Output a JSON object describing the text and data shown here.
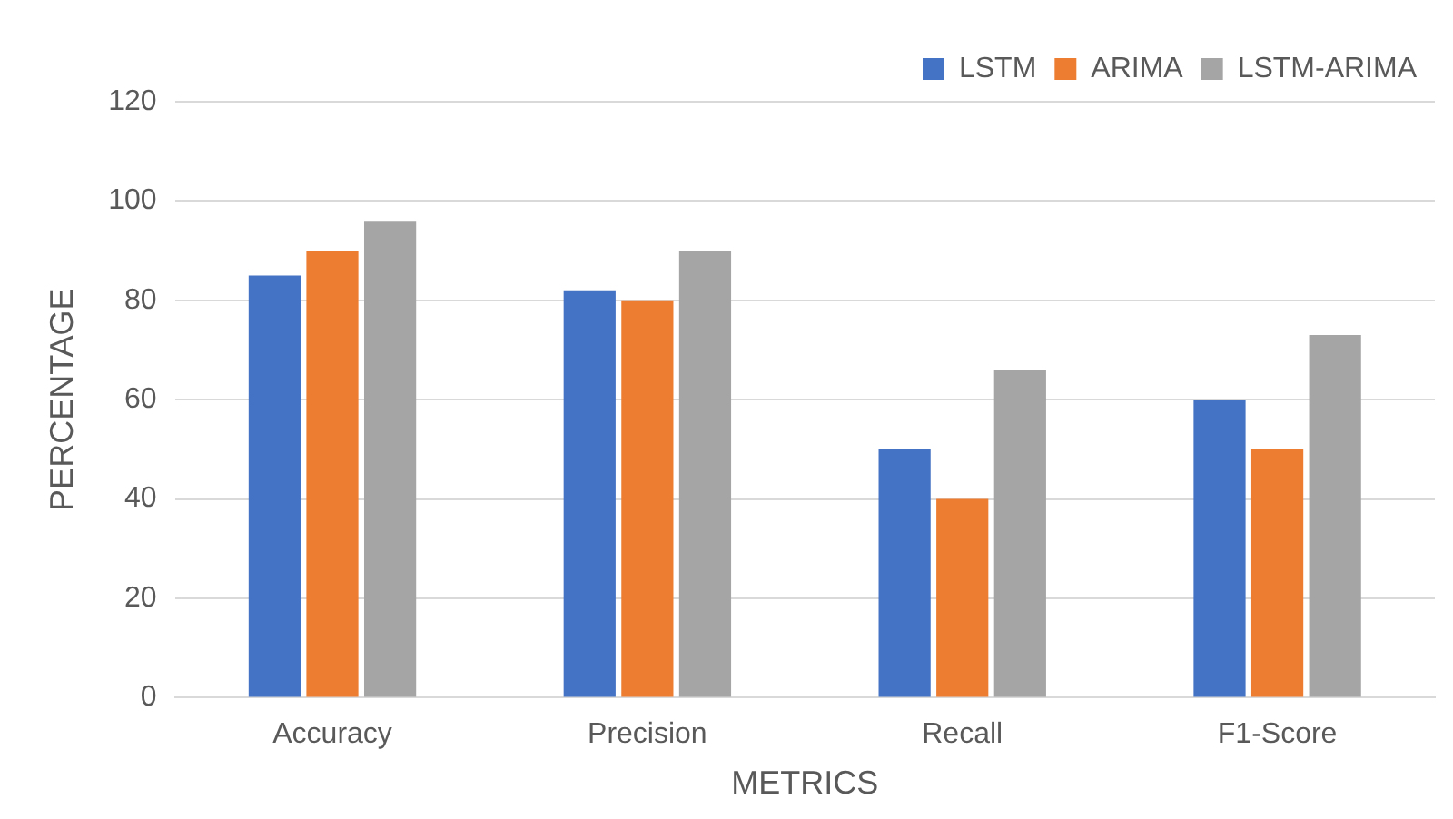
{
  "chart_data": {
    "type": "bar",
    "xlabel": "METRICS",
    "ylabel": "PERCENTAGE",
    "categories": [
      "Accuracy",
      "Precision",
      "Recall",
      "F1-Score"
    ],
    "series": [
      {
        "name": "LSTM",
        "color": "#4472c4",
        "values": [
          85,
          82,
          50,
          60
        ]
      },
      {
        "name": "ARIMA",
        "color": "#ed7d31",
        "values": [
          90,
          80,
          40,
          50
        ]
      },
      {
        "name": "LSTM-ARIMA",
        "color": "#a5a5a5",
        "values": [
          96,
          90,
          66,
          73
        ]
      }
    ],
    "ylim": [
      0,
      120
    ],
    "yticks": [
      0,
      20,
      40,
      60,
      80,
      100,
      120
    ],
    "grid": "y",
    "legend": "top right"
  }
}
